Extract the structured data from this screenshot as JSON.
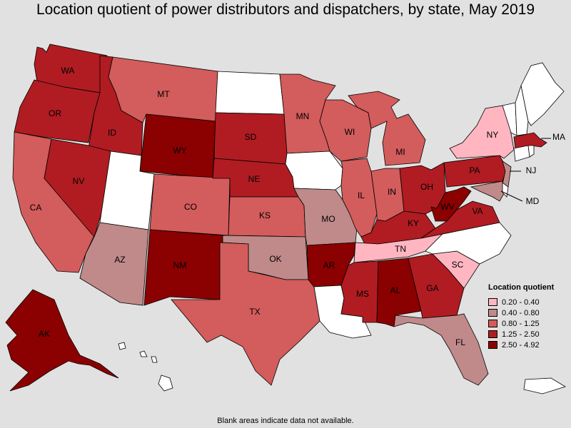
{
  "title": "Location quotient of power distributors and dispatchers, by state, May 2019",
  "footnote": "Blank areas indicate data not available.",
  "legend": {
    "title": "Location quotient",
    "items": [
      {
        "label": "0.20 - 0.40",
        "color": "#ffb6c1"
      },
      {
        "label": "0.40 - 0.80",
        "color": "#c08a8a"
      },
      {
        "label": "0.80 - 1.25",
        "color": "#d35c5c"
      },
      {
        "label": "1.25 - 2.50",
        "color": "#b01c22"
      },
      {
        "label": "2.50 - 4.92",
        "color": "#8b0000"
      }
    ]
  },
  "colors": {
    "background": "#e1e1e1",
    "no_data": "#ffffff",
    "c1": "#ffb6c1",
    "c2": "#c08a8a",
    "c3": "#d35c5c",
    "c4": "#b01c22",
    "c5": "#8b0000"
  },
  "states": [
    {
      "abbr": "WA",
      "class": "1.25 - 2.50"
    },
    {
      "abbr": "OR",
      "class": "1.25 - 2.50"
    },
    {
      "abbr": "CA",
      "class": "0.80 - 1.25"
    },
    {
      "abbr": "ID",
      "class": "1.25 - 2.50"
    },
    {
      "abbr": "NV",
      "class": "1.25 - 2.50"
    },
    {
      "abbr": "MT",
      "class": "0.80 - 1.25"
    },
    {
      "abbr": "WY",
      "class": "2.50 - 4.92"
    },
    {
      "abbr": "UT",
      "class": "no data"
    },
    {
      "abbr": "AZ",
      "class": "0.40 - 0.80"
    },
    {
      "abbr": "CO",
      "class": "0.80 - 1.25"
    },
    {
      "abbr": "NM",
      "class": "2.50 - 4.92"
    },
    {
      "abbr": "ND",
      "class": "no data"
    },
    {
      "abbr": "SD",
      "class": "1.25 - 2.50"
    },
    {
      "abbr": "NE",
      "class": "1.25 - 2.50"
    },
    {
      "abbr": "KS",
      "class": "0.80 - 1.25"
    },
    {
      "abbr": "OK",
      "class": "0.40 - 0.80"
    },
    {
      "abbr": "TX",
      "class": "0.80 - 1.25"
    },
    {
      "abbr": "MN",
      "class": "0.80 - 1.25"
    },
    {
      "abbr": "IA",
      "class": "no data"
    },
    {
      "abbr": "MO",
      "class": "0.40 - 0.80"
    },
    {
      "abbr": "AR",
      "class": "2.50 - 4.92"
    },
    {
      "abbr": "LA",
      "class": "no data"
    },
    {
      "abbr": "WI",
      "class": "0.80 - 1.25"
    },
    {
      "abbr": "IL",
      "class": "0.80 - 1.25"
    },
    {
      "abbr": "MI",
      "class": "0.80 - 1.25"
    },
    {
      "abbr": "IN",
      "class": "0.80 - 1.25"
    },
    {
      "abbr": "OH",
      "class": "1.25 - 2.50"
    },
    {
      "abbr": "KY",
      "class": "1.25 - 2.50"
    },
    {
      "abbr": "TN",
      "class": "0.20 - 0.40"
    },
    {
      "abbr": "MS",
      "class": "1.25 - 2.50"
    },
    {
      "abbr": "AL",
      "class": "2.50 - 4.92"
    },
    {
      "abbr": "GA",
      "class": "1.25 - 2.50"
    },
    {
      "abbr": "FL",
      "class": "0.40 - 0.80"
    },
    {
      "abbr": "SC",
      "class": "0.20 - 0.40"
    },
    {
      "abbr": "NC",
      "class": "no data"
    },
    {
      "abbr": "VA",
      "class": "1.25 - 2.50"
    },
    {
      "abbr": "WV",
      "class": "2.50 - 4.92"
    },
    {
      "abbr": "PA",
      "class": "1.25 - 2.50"
    },
    {
      "abbr": "NY",
      "class": "0.20 - 0.40"
    },
    {
      "abbr": "NJ",
      "class": "0.40 - 0.80"
    },
    {
      "abbr": "MD",
      "class": "0.40 - 0.80"
    },
    {
      "abbr": "MA",
      "class": "1.25 - 2.50"
    },
    {
      "abbr": "AK",
      "class": "2.50 - 4.92"
    }
  ],
  "labels": {
    "WA": "WA",
    "OR": "OR",
    "CA": "CA",
    "ID": "ID",
    "NV": "NV",
    "MT": "MT",
    "WY": "WY",
    "AZ": "AZ",
    "CO": "CO",
    "NM": "NM",
    "SD": "SD",
    "NE": "NE",
    "KS": "KS",
    "OK": "OK",
    "TX": "TX",
    "MN": "MN",
    "MO": "MO",
    "AR": "AR",
    "WI": "WI",
    "IL": "IL",
    "MI": "MI",
    "IN": "IN",
    "OH": "OH",
    "KY": "KY",
    "TN": "TN",
    "MS": "MS",
    "AL": "AL",
    "GA": "GA",
    "FL": "FL",
    "SC": "SC",
    "VA": "VA",
    "WV": "WV",
    "PA": "PA",
    "NY": "NY",
    "NJ": "NJ",
    "MD": "MD",
    "MA": "MA",
    "AK": "AK"
  }
}
